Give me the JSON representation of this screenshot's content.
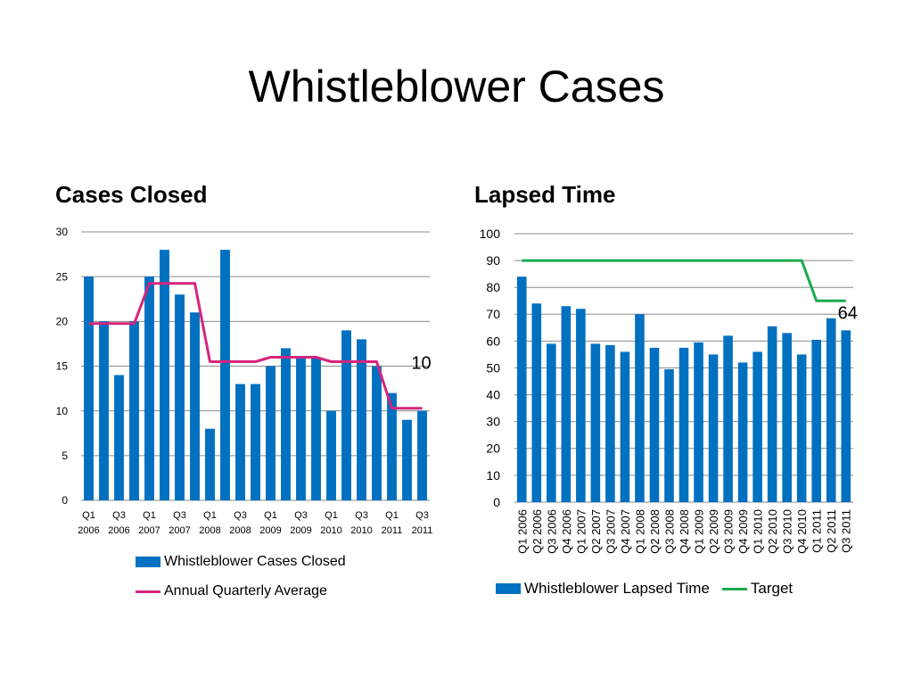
{
  "slide": {
    "title": "Whistleblower Cases",
    "left_subtitle": "Cases Closed",
    "right_subtitle": "Lapsed Time"
  },
  "colors": {
    "bar": "#0070C0",
    "average": "#D6257D",
    "target": "#1DAA4E",
    "grid": "#8C8C8C"
  },
  "chart_data": [
    {
      "type": "bar",
      "title": "Cases Closed",
      "categories": [
        "Q1 2006",
        "Q2 2006",
        "Q3 2006",
        "Q4 2006",
        "Q1 2007",
        "Q2 2007",
        "Q3 2007",
        "Q4 2007",
        "Q1 2008",
        "Q2 2008",
        "Q3 2008",
        "Q4 2008",
        "Q1 2009",
        "Q2 2009",
        "Q3 2009",
        "Q4 2009",
        "Q1 2010",
        "Q2 2010",
        "Q3 2010",
        "Q4 2010",
        "Q1 2011",
        "Q2 2011",
        "Q3 2011"
      ],
      "tick_labels": [
        [
          "Q1",
          "2006"
        ],
        [
          "Q3",
          "2006"
        ],
        [
          "Q1",
          "2007"
        ],
        [
          "Q3",
          "2007"
        ],
        [
          "Q1",
          "2008"
        ],
        [
          "Q3",
          "2008"
        ],
        [
          "Q1",
          "2009"
        ],
        [
          "Q3",
          "2009"
        ],
        [
          "Q1",
          "2010"
        ],
        [
          "Q3",
          "2010"
        ],
        [
          "Q1",
          "2011"
        ],
        [
          "Q3",
          "2011"
        ]
      ],
      "y_ticks": [
        "0",
        "5",
        "10",
        "15",
        "20",
        "25",
        "30"
      ],
      "ylim": [
        0,
        30
      ],
      "grid": true,
      "legend_position": "bottom",
      "series": [
        {
          "name": "Whistleblower Cases Closed",
          "kind": "bar",
          "values": [
            25,
            20,
            14,
            20,
            25,
            28,
            23,
            21,
            8,
            28,
            13,
            13,
            15,
            17,
            16,
            16,
            10,
            19,
            18,
            15,
            12,
            9,
            10
          ]
        },
        {
          "name": "Annual Quarterly Average",
          "kind": "line",
          "values": [
            19.75,
            19.75,
            19.75,
            19.75,
            24.25,
            24.25,
            24.25,
            24.25,
            15.5,
            15.5,
            15.5,
            15.5,
            16,
            16,
            16,
            16,
            15.5,
            15.5,
            15.5,
            15.5,
            10.3,
            10.3,
            10.3
          ]
        }
      ],
      "annotation": "10"
    },
    {
      "type": "bar",
      "title": "Lapsed Time",
      "categories": [
        "Q1 2006",
        "Q2 2006",
        "Q3 2006",
        "Q4 2006",
        "Q1 2007",
        "Q2 2007",
        "Q3 2007",
        "Q4 2007",
        "Q1 2008",
        "Q2 2008",
        "Q3 2008",
        "Q4 2008",
        "Q1 2009",
        "Q2 2009",
        "Q3 2009",
        "Q4 2009",
        "Q1 2010",
        "Q2 2010",
        "Q3 2010",
        "Q4 2010",
        "Q1 2011",
        "Q2 2011",
        "Q3 2011"
      ],
      "y_ticks": [
        "0",
        "10",
        "20",
        "30",
        "40",
        "50",
        "60",
        "70",
        "80",
        "90",
        "100"
      ],
      "ylim": [
        0,
        100
      ],
      "grid": true,
      "legend_position": "bottom",
      "series": [
        {
          "name": "Whistleblower Lapsed Time",
          "kind": "bar",
          "values": [
            84,
            74,
            59,
            73,
            72,
            59,
            58.5,
            56,
            70,
            57.5,
            49.5,
            57.5,
            59.5,
            55,
            62,
            52,
            56,
            65.5,
            63,
            55,
            60.5,
            68.5,
            64
          ]
        },
        {
          "name": "Target",
          "kind": "line",
          "values": [
            90,
            90,
            90,
            90,
            90,
            90,
            90,
            90,
            90,
            90,
            90,
            90,
            90,
            90,
            90,
            90,
            90,
            90,
            90,
            90,
            75,
            75,
            75
          ]
        }
      ],
      "annotation": "64"
    }
  ]
}
